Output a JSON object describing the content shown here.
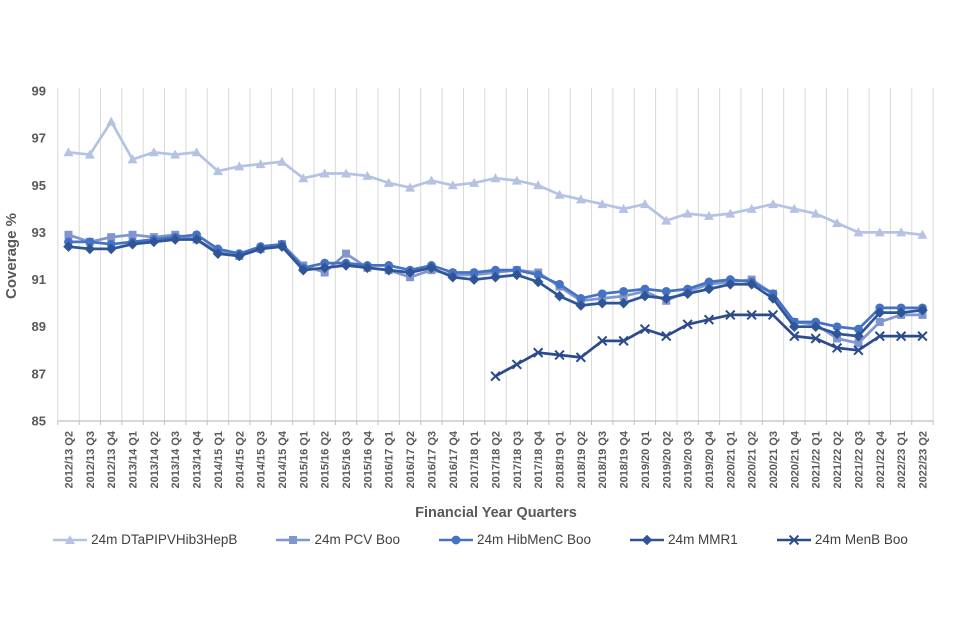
{
  "chart_data": {
    "type": "line",
    "title": "",
    "xlabel": "Financial Year Quarters",
    "ylabel": "Coverage %",
    "ylim": [
      85,
      99
    ],
    "yticks": [
      85,
      87,
      89,
      91,
      93,
      95,
      97,
      99
    ],
    "grid": "vertical-only",
    "legend_position": "bottom",
    "axis_text_color": "#595959",
    "grid_color": "#d9d9d9",
    "axis_line_color": "#bfbfbf",
    "categories": [
      "2012/13 Q2",
      "2012/13 Q3",
      "2012/13 Q4",
      "2013/14 Q1",
      "2013/14 Q2",
      "2013/14 Q3",
      "2013/14 Q4",
      "2014/15 Q1",
      "2014/15 Q2",
      "2014/15 Q3",
      "2014/15 Q4",
      "2015/16 Q1",
      "2015/16 Q2",
      "2015/16 Q3",
      "2015/16 Q4",
      "2016/17 Q1",
      "2016/17 Q2",
      "2016/17 Q3",
      "2016/17 Q4",
      "2017/18 Q1",
      "2017/18 Q2",
      "2017/18 Q3",
      "2017/18 Q4",
      "2018/19 Q1",
      "2018/19 Q2",
      "2018/19 Q3",
      "2018/19 Q4",
      "2019/20 Q1",
      "2019/20 Q2",
      "2019/20 Q3",
      "2019/20 Q4",
      "2020/21 Q1",
      "2020/21 Q2",
      "2020/21 Q3",
      "2020/21 Q4",
      "2021/22 Q1",
      "2021/22 Q2",
      "2021/22 Q3",
      "2021/22 Q4",
      "2022/23 Q1",
      "2022/23 Q2"
    ],
    "series": [
      {
        "name": "24m DTaPIPVHib3HepB",
        "marker": "triangle",
        "color": "#b4c2e4",
        "values": [
          96.4,
          96.3,
          97.7,
          96.1,
          96.4,
          96.3,
          96.4,
          95.6,
          95.8,
          95.9,
          96.0,
          95.3,
          95.5,
          95.5,
          95.4,
          95.1,
          94.9,
          95.2,
          95.0,
          95.1,
          95.3,
          95.2,
          95.0,
          94.6,
          94.4,
          94.2,
          94.0,
          94.2,
          93.5,
          93.8,
          93.7,
          93.8,
          94.0,
          94.2,
          94.0,
          93.8,
          93.4,
          93.0,
          93.0,
          93.0,
          92.9
        ]
      },
      {
        "name": "24m PCV Boo",
        "marker": "square",
        "color": "#8096d0",
        "values": [
          92.9,
          92.6,
          92.8,
          92.9,
          92.8,
          92.9,
          92.7,
          92.2,
          92.0,
          92.3,
          92.5,
          91.6,
          91.3,
          92.1,
          91.5,
          91.4,
          91.1,
          91.4,
          91.2,
          91.2,
          91.3,
          91.4,
          91.3,
          90.7,
          90.1,
          90.2,
          90.3,
          90.5,
          90.1,
          90.5,
          90.8,
          90.9,
          91.0,
          90.4,
          89.2,
          89.1,
          88.5,
          88.3,
          89.2,
          89.5,
          89.5
        ]
      },
      {
        "name": "24m HibMenC Boo",
        "marker": "circle",
        "color": "#4472c4",
        "values": [
          92.6,
          92.6,
          92.5,
          92.6,
          92.7,
          92.8,
          92.9,
          92.3,
          92.1,
          92.4,
          92.5,
          91.5,
          91.7,
          91.7,
          91.6,
          91.6,
          91.4,
          91.6,
          91.3,
          91.3,
          91.4,
          91.4,
          91.2,
          90.8,
          90.2,
          90.4,
          90.5,
          90.6,
          90.5,
          90.6,
          90.9,
          91.0,
          90.9,
          90.4,
          89.2,
          89.2,
          89.0,
          88.9,
          89.8,
          89.8,
          89.8
        ]
      },
      {
        "name": "24m MMR1",
        "marker": "diamond",
        "color": "#2f5597",
        "values": [
          92.4,
          92.3,
          92.3,
          92.5,
          92.6,
          92.7,
          92.7,
          92.1,
          92.0,
          92.3,
          92.4,
          91.4,
          91.5,
          91.6,
          91.5,
          91.4,
          91.3,
          91.5,
          91.1,
          91.0,
          91.1,
          91.2,
          90.9,
          90.3,
          89.9,
          90.0,
          90.0,
          90.3,
          90.2,
          90.4,
          90.6,
          90.8,
          90.8,
          90.2,
          89.0,
          89.0,
          88.7,
          88.6,
          89.6,
          89.6,
          89.7
        ]
      },
      {
        "name": "24m MenB Boo",
        "marker": "x",
        "color": "#2c4b8c",
        "values": [
          null,
          null,
          null,
          null,
          null,
          null,
          null,
          null,
          null,
          null,
          null,
          null,
          null,
          null,
          null,
          null,
          null,
          null,
          null,
          null,
          86.9,
          87.4,
          87.9,
          87.8,
          87.7,
          88.4,
          88.4,
          88.9,
          88.6,
          89.1,
          89.3,
          89.5,
          89.5,
          89.5,
          88.6,
          88.5,
          88.1,
          88.0,
          88.6,
          88.6,
          88.6
        ]
      }
    ]
  }
}
